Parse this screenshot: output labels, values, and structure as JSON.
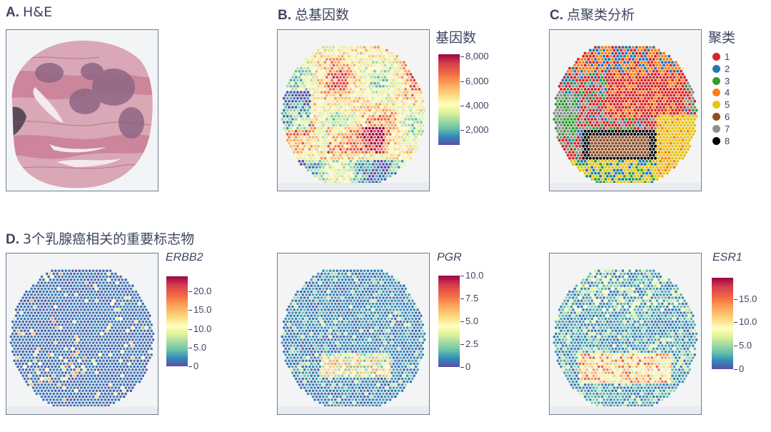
{
  "panels": {
    "a": {
      "letter": "A.",
      "title": "H&E"
    },
    "b": {
      "letter": "B.",
      "title": "总基因数",
      "legend_title": "基因数"
    },
    "c": {
      "letter": "C.",
      "title": "点聚类分析",
      "legend_title": "聚类"
    },
    "d": {
      "letter": "D.",
      "title": "3个乳腺癌相关的重要标志物"
    }
  },
  "chart_data": [
    {
      "type": "heatmap",
      "title": "总基因数",
      "colorbar_title": "基因数",
      "colorscale": "Spectral_r",
      "colorbar_range": [
        800,
        8200
      ],
      "ticks": [
        2000,
        4000,
        6000,
        8000
      ],
      "tick_labels": [
        "2,000",
        "4,000",
        "6,000",
        "8,000"
      ]
    },
    {
      "type": "scatter",
      "title": "点聚类分析",
      "legend_title": "聚类",
      "clusters": [
        {
          "label": "1",
          "color": "#d62728"
        },
        {
          "label": "2",
          "color": "#1f77b4"
        },
        {
          "label": "3",
          "color": "#2ca02c"
        },
        {
          "label": "4",
          "color": "#ff7f0e"
        },
        {
          "label": "5",
          "color": "#e8c40f"
        },
        {
          "label": "6",
          "color": "#8c4d25"
        },
        {
          "label": "7",
          "color": "#8f8f8f"
        },
        {
          "label": "8",
          "color": "#000000"
        }
      ]
    },
    {
      "type": "heatmap",
      "gene": "ERBB2",
      "colorscale": "Spectral_r",
      "colorbar_range": [
        0,
        24
      ],
      "ticks": [
        0,
        5,
        10,
        15,
        20
      ],
      "tick_labels": [
        "0",
        "5.0",
        "10.0",
        "15.0",
        "20.0"
      ]
    },
    {
      "type": "heatmap",
      "gene": "PGR",
      "colorscale": "Spectral_r",
      "colorbar_range": [
        0,
        10
      ],
      "ticks": [
        0,
        2.5,
        5,
        7.5,
        10
      ],
      "tick_labels": [
        "0",
        "2.5",
        "5.0",
        "7.5",
        "10.0"
      ]
    },
    {
      "type": "heatmap",
      "gene": "ESR1",
      "colorscale": "Spectral_r",
      "colorbar_range": [
        0,
        19.5
      ],
      "ticks": [
        0,
        5,
        10,
        15
      ],
      "tick_labels": [
        "0",
        "5.0",
        "10.0",
        "15.0"
      ]
    }
  ]
}
